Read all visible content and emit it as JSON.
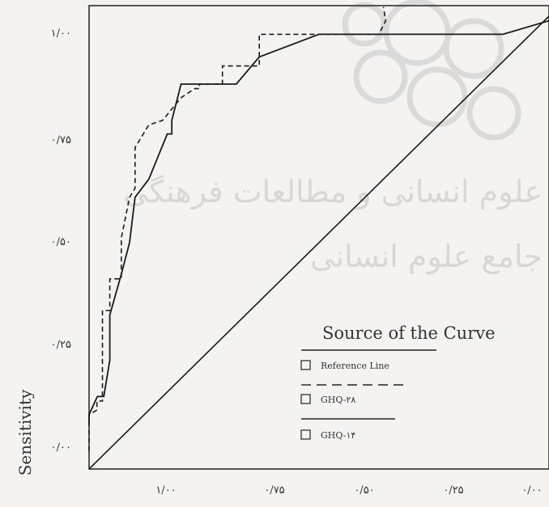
{
  "chart_data": {
    "type": "line",
    "title": "",
    "ylabel": "Sensitivity",
    "xlabel": "",
    "xlim": [
      1.0,
      0.0
    ],
    "ylim": [
      0.0,
      1.0
    ],
    "x_tick_labels": [
      {
        "value": 0.75,
        "label": "۱/۰۰"
      },
      {
        "value": 0.5,
        "label": "۰/۷۵"
      },
      {
        "value": 0.25,
        "label": "۰/۵۰"
      },
      {
        "value": 0.0,
        "label": "۰/۲۵"
      },
      {
        "value": -0.25,
        "label": "۰/۰۰"
      }
    ],
    "y_tick_labels": [
      {
        "value": 1.0,
        "label": "۱/۰۰"
      },
      {
        "value": 0.75,
        "label": "۰/۷۵"
      },
      {
        "value": 0.5,
        "label": "۰/۵۰"
      },
      {
        "value": 0.25,
        "label": "۰/۲۵"
      },
      {
        "value": 0.0,
        "label": "۰/۰۰"
      }
    ],
    "grid": false,
    "legend": {
      "title": "Source of the Curve",
      "placement": "bottom-right"
    },
    "series": [
      {
        "name": "Reference Line",
        "style": "solid",
        "x": [
          1.0,
          0.0
        ],
        "y": [
          0.0,
          1.0
        ]
      },
      {
        "name": "GHQ-۲۸",
        "style": "dashed",
        "x": [
          1.0,
          1.0,
          0.983,
          0.983,
          0.971,
          0.971,
          0.955,
          0.955,
          0.93,
          0.93,
          0.912,
          0.9,
          0.9,
          0.87,
          0.84,
          0.8,
          0.77,
          0.76,
          0.76,
          0.71,
          0.71,
          0.63,
          0.63,
          0.5,
          0.5,
          0.37,
          0.355,
          0.36
        ],
        "y": [
          0.04,
          0.12,
          0.13,
          0.15,
          0.15,
          0.35,
          0.35,
          0.42,
          0.42,
          0.51,
          0.6,
          0.62,
          0.71,
          0.76,
          0.77,
          0.82,
          0.84,
          0.84,
          0.85,
          0.85,
          0.89,
          0.89,
          0.96,
          0.96,
          0.96,
          0.96,
          0.99,
          1.02
        ]
      },
      {
        "name": "GHQ-۱۴",
        "style": "solid",
        "x": [
          1.0,
          1.0,
          0.982,
          0.968,
          0.955,
          0.955,
          0.93,
          0.912,
          0.9,
          0.87,
          0.83,
          0.82,
          0.82,
          0.8,
          0.77,
          0.77,
          0.68,
          0.63,
          0.5,
          0.5,
          0.1,
          0.0
        ],
        "y": [
          0.1,
          0.12,
          0.16,
          0.16,
          0.24,
          0.34,
          0.43,
          0.5,
          0.6,
          0.64,
          0.74,
          0.74,
          0.77,
          0.85,
          0.85,
          0.85,
          0.85,
          0.91,
          0.96,
          0.96,
          0.96,
          0.99
        ]
      }
    ]
  },
  "watermark": {
    "line1": "علوم انسانی و مطالعات فرهنگی",
    "line2": "جامع علوم انسانی"
  }
}
